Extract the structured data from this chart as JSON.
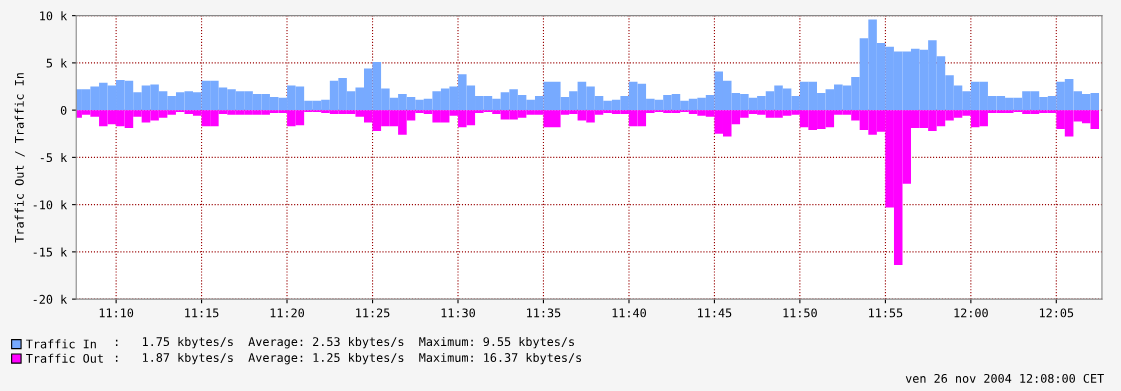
{
  "chart_data": {
    "type": "bar",
    "stacked": true,
    "ylabel": "Traffic Out / Traffic In",
    "x": [
      11.1292,
      11.1375,
      11.1458,
      11.1542,
      11.1625,
      11.1708,
      11.1792,
      11.1875,
      11.1958,
      11.2042,
      11.2125,
      11.2208,
      11.2292,
      11.2375,
      11.2458,
      11.2542,
      11.2625,
      11.2708,
      11.2792,
      11.2875,
      11.2958,
      11.3042,
      11.3125,
      11.3208,
      11.3292,
      11.3375,
      11.3458,
      11.3542,
      11.3625,
      11.3708,
      11.3792,
      11.3875,
      11.3958,
      11.4042,
      11.4125,
      11.4208,
      11.4292,
      11.4375,
      11.4458,
      11.4542,
      11.4625,
      11.4708,
      11.4792,
      11.4875,
      11.4958,
      11.5042,
      11.5125,
      11.5208,
      11.5292,
      11.5375,
      11.5458,
      11.5542,
      11.5625,
      11.5708,
      11.5792,
      11.5875,
      11.5958,
      11.6042,
      11.6125,
      11.6208,
      11.6292,
      11.6375,
      11.6458,
      11.6542,
      11.6625,
      11.6708,
      11.6792,
      11.6875,
      11.6958,
      11.7042,
      11.7125,
      11.7208,
      11.7292,
      11.7375,
      11.7458,
      11.7542,
      11.7625,
      11.7708,
      11.7792,
      11.7875,
      11.7958,
      11.8042,
      11.8125,
      11.8208,
      11.8292,
      11.8375,
      11.8458,
      11.8542,
      11.8625,
      11.8708,
      11.8792,
      11.8875,
      11.8958,
      11.9042,
      11.9125,
      11.9208,
      11.9292,
      11.9375,
      11.9458,
      11.9542,
      11.9625,
      11.9708,
      11.9792,
      11.9875,
      11.9958,
      12.0042,
      12.0125,
      12.0208,
      12.0292,
      12.0375,
      12.0458,
      12.0542,
      12.0625,
      12.0708,
      12.0792,
      12.0875,
      12.0958,
      12.1042,
      12.1125,
      12.1208
    ],
    "series": [
      {
        "name": "Traffic In",
        "color": "#77aaff",
        "values": [
          2.2,
          2.2,
          2.5,
          2.9,
          2.6,
          3.2,
          3.1,
          1.9,
          2.6,
          2.7,
          2.0,
          1.5,
          1.9,
          2.0,
          1.9,
          3.1,
          3.1,
          2.4,
          2.2,
          2.0,
          2.0,
          1.7,
          1.7,
          1.4,
          1.3,
          2.6,
          2.5,
          1.0,
          1.0,
          1.1,
          3.1,
          3.4,
          2.0,
          2.4,
          4.4,
          5.1,
          2.3,
          1.3,
          1.7,
          1.4,
          1.1,
          1.2,
          2.0,
          2.3,
          2.5,
          3.8,
          2.6,
          1.5,
          1.5,
          1.2,
          1.9,
          2.2,
          1.6,
          1.1,
          1.5,
          3.0,
          3.0,
          1.4,
          2.0,
          3.0,
          2.5,
          1.5,
          1.0,
          1.1,
          1.5,
          3.0,
          2.8,
          1.2,
          1.1,
          1.6,
          1.7,
          1.0,
          1.2,
          1.3,
          1.6,
          4.1,
          3.1,
          1.8,
          1.7,
          1.3,
          1.5,
          2.0,
          2.6,
          2.3,
          1.5,
          3.0,
          3.0,
          1.8,
          2.2,
          2.7,
          2.6,
          3.5,
          7.6,
          9.6,
          7.1,
          6.7,
          6.2,
          6.2,
          6.5,
          6.4,
          7.4,
          5.7,
          3.7,
          2.6,
          2.0,
          3.0,
          3.0,
          1.5,
          1.5,
          1.3,
          1.3,
          2.0,
          2.0,
          1.4,
          1.5,
          3.0,
          3.3,
          2.0,
          1.7,
          1.8
        ]
      },
      {
        "name": "Traffic Out",
        "color": "#ff00ff",
        "values": [
          -0.8,
          -0.5,
          -0.7,
          -1.7,
          -1.5,
          -1.7,
          -1.9,
          -0.7,
          -1.3,
          -1.1,
          -0.8,
          -0.5,
          -0.2,
          -0.4,
          -0.6,
          -1.7,
          -1.7,
          -0.4,
          -0.5,
          -0.5,
          -0.5,
          -0.5,
          -0.5,
          -0.3,
          -0.3,
          -1.7,
          -1.6,
          -0.2,
          -0.2,
          -0.3,
          -0.4,
          -0.4,
          -0.4,
          -0.7,
          -1.3,
          -2.2,
          -1.7,
          -1.7,
          -2.6,
          -1.1,
          -0.3,
          -0.4,
          -1.3,
          -1.3,
          -0.6,
          -1.8,
          -1.6,
          -0.3,
          -0.2,
          -0.4,
          -1.0,
          -1.0,
          -0.8,
          -0.5,
          -0.5,
          -1.8,
          -1.8,
          -0.5,
          -0.4,
          -1.1,
          -1.3,
          -0.5,
          -0.3,
          -0.4,
          -0.4,
          -1.7,
          -1.7,
          -0.3,
          -0.2,
          -0.3,
          -0.3,
          -0.2,
          -0.4,
          -0.6,
          -0.7,
          -2.5,
          -2.8,
          -1.5,
          -0.8,
          -0.4,
          -0.5,
          -0.8,
          -0.8,
          -0.6,
          -0.5,
          -1.8,
          -2.1,
          -2.0,
          -1.8,
          -0.5,
          -0.5,
          -1.1,
          -2.1,
          -2.6,
          -2.3,
          -10.3,
          -16.4,
          -7.8,
          -1.9,
          -1.9,
          -2.2,
          -1.7,
          -1.1,
          -0.8,
          -0.6,
          -1.8,
          -1.7,
          -0.3,
          -0.3,
          -0.3,
          -0.2,
          -0.4,
          -0.4,
          -0.3,
          -0.3,
          -2.0,
          -2.8,
          -1.2,
          -1.4,
          -2.0
        ]
      }
    ],
    "xlim": [
      11.1278,
      12.1278
    ],
    "xticks": [
      {
        "value": 11.1667,
        "label": "11:10"
      },
      {
        "value": 11.25,
        "label": "11:15"
      },
      {
        "value": 11.3333,
        "label": "11:20"
      },
      {
        "value": 11.4167,
        "label": "11:25"
      },
      {
        "value": 11.5,
        "label": "11:30"
      },
      {
        "value": 11.5833,
        "label": "11:35"
      },
      {
        "value": 11.6667,
        "label": "11:40"
      },
      {
        "value": 11.75,
        "label": "11:45"
      },
      {
        "value": 11.8333,
        "label": "11:50"
      },
      {
        "value": 11.9167,
        "label": "11:55"
      },
      {
        "value": 12.0,
        "label": "12:00"
      },
      {
        "value": 12.0833,
        "label": "12:05"
      }
    ],
    "ylim": [
      -20,
      10
    ],
    "yticks": [
      {
        "value": -20,
        "label": "-20 k"
      },
      {
        "value": -15,
        "label": "-15 k"
      },
      {
        "value": -10,
        "label": "-10 k"
      },
      {
        "value": -5,
        "label": "-5 k"
      },
      0,
      {
        "value": 5,
        "label": "5 k"
      },
      {
        "value": 10,
        "label": "10 k"
      }
    ],
    "grid": true,
    "legend": "bottom left",
    "annotations": [
      ":   1.75 kbytes/s  Average: 2.53 kbytes/s  Maximum: 9.55 kbytes/s",
      ":   1.87 kbytes/s  Average: 1.25 kbytes/s  Maximum: 16.37 kbytes/s",
      "ven 26 nov 2004 12:08:00 CET"
    ]
  }
}
